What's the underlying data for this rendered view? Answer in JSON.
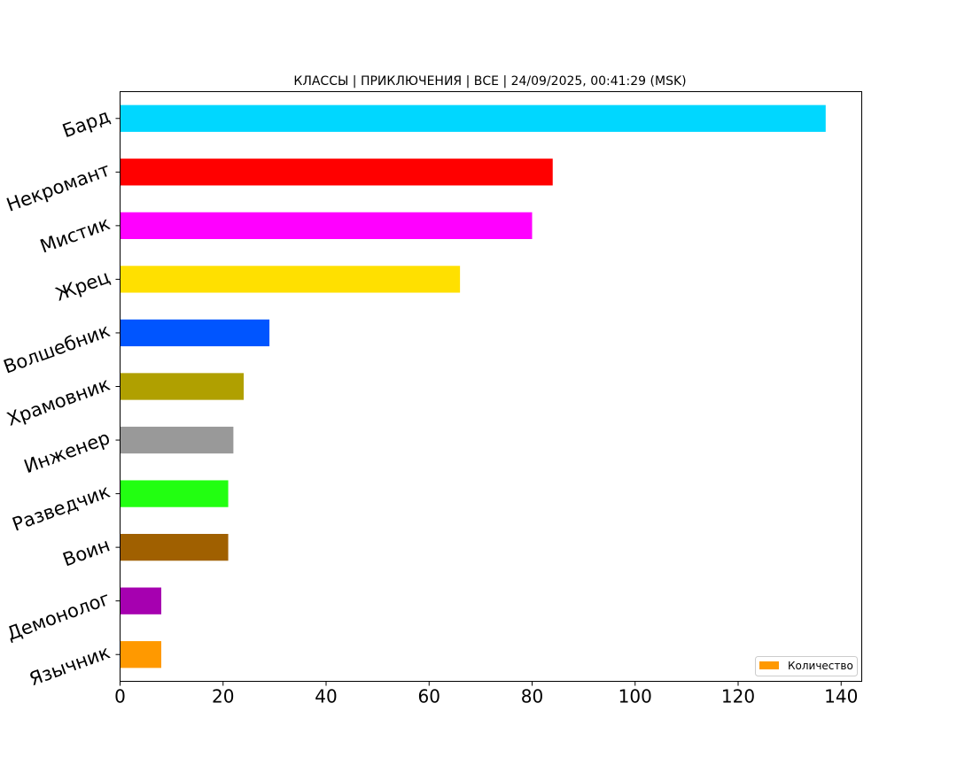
{
  "chart_data": {
    "type": "bar",
    "orientation": "horizontal",
    "title": "КЛАССЫ | ПРИКЛЮЧЕНИЯ | ВСЕ | 24/09/2025, 00:41:29 (MSK)",
    "xlabel": "",
    "ylabel": "",
    "categories": [
      "Бард",
      "Некромант",
      "Мистик",
      "Жрец",
      "Волшебник",
      "Храмовник",
      "Инженер",
      "Разведчик",
      "Воин",
      "Демонолог",
      "Язычник"
    ],
    "values": [
      137,
      84,
      80,
      66,
      29,
      24,
      22,
      21,
      21,
      8,
      8
    ],
    "colors": [
      "#00d7ff",
      "#ff0000",
      "#ff00ff",
      "#ffe000",
      "#0055ff",
      "#b0a000",
      "#999999",
      "#22ff11",
      "#a06000",
      "#a600b0",
      "#ff9900"
    ],
    "xlim": [
      0,
      144
    ],
    "xticks": [
      0,
      20,
      40,
      60,
      80,
      100,
      120,
      140
    ],
    "grid": false,
    "legend": {
      "position": "bottom-right",
      "entries": [
        {
          "label": "Количество",
          "color": "#ff9900"
        }
      ]
    }
  }
}
